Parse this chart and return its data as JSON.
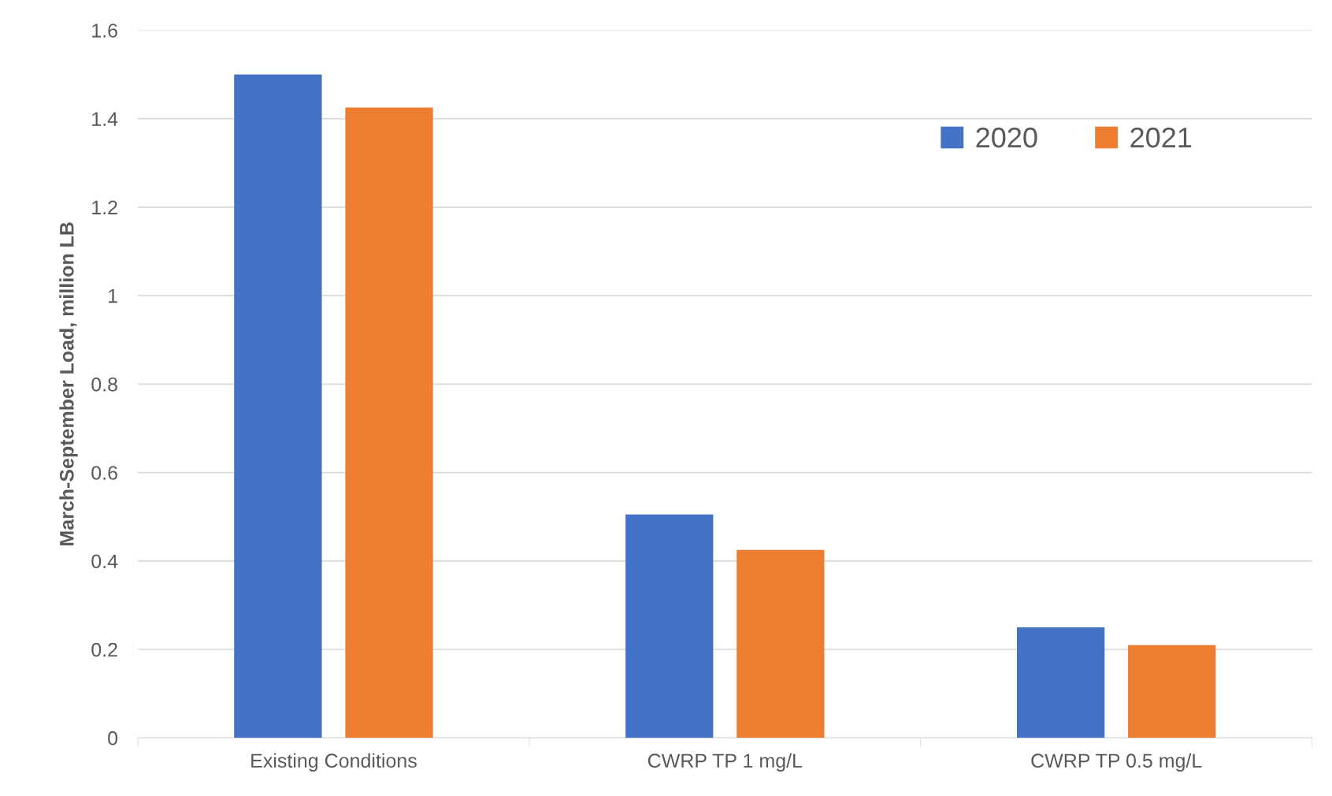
{
  "chart_data": {
    "type": "bar",
    "ylabel": "March-September Load, million LB",
    "categories": [
      "Existing Conditions",
      "CWRP TP 1 mg/L",
      "CWRP TP 0.5 mg/L"
    ],
    "series": [
      {
        "name": "2020",
        "color": "#4472c4",
        "values": [
          1.5,
          0.505,
          0.25
        ]
      },
      {
        "name": "2021",
        "color": "#ed7d31",
        "values": [
          1.425,
          0.425,
          0.21
        ]
      }
    ],
    "ylim": [
      0,
      1.6
    ],
    "yticks": [
      {
        "value": 0,
        "label": "0"
      },
      0.2,
      0.4,
      0.6,
      0.8,
      {
        "value": 1,
        "label": "1"
      },
      1.2,
      1.4,
      1.6
    ],
    "grid": "y",
    "legend": "top right"
  }
}
